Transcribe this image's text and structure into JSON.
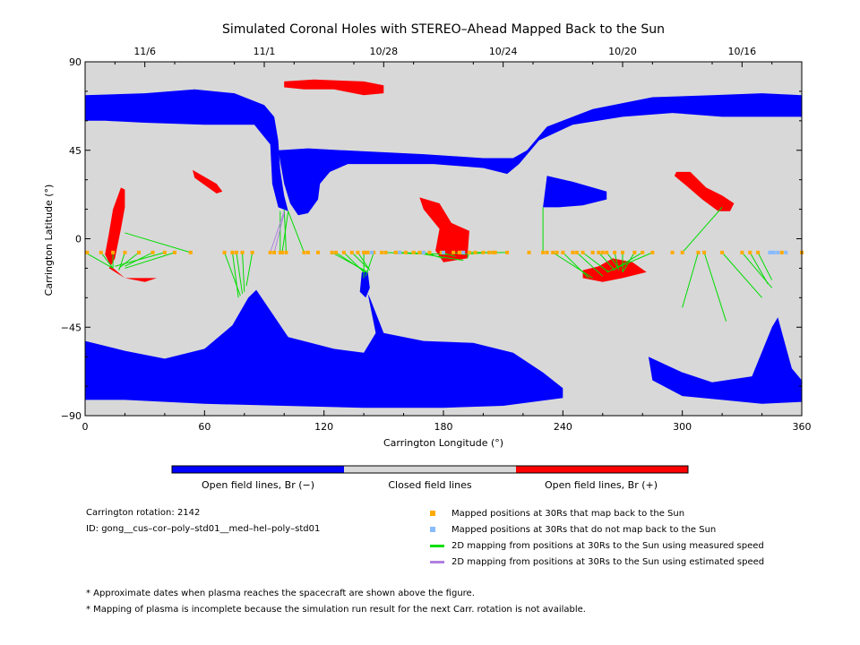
{
  "chart_data": {
    "type": "scatter",
    "title": "Simulated Coronal Holes with STEREO–Ahead Mapped Back to the Sun",
    "xlabel": "Carrington Longitude (°)",
    "ylabel": "Carrington Latitude (°)",
    "xlim": [
      0,
      360
    ],
    "ylim": [
      -90,
      90
    ],
    "x_ticks": [
      0,
      60,
      120,
      180,
      240,
      300,
      360
    ],
    "y_ticks": [
      -90,
      -45,
      0,
      45,
      90
    ],
    "x_tick_labels": [
      "0",
      "60",
      "120",
      "180",
      "240",
      "300",
      "360"
    ],
    "y_tick_labels": [
      "−90",
      "−45",
      "0",
      "45",
      "90"
    ],
    "top_axis_dates": [
      {
        "label": "11/6",
        "lon": 30
      },
      {
        "label": "11/1",
        "lon": 90
      },
      {
        "label": "10/28",
        "lon": 150
      },
      {
        "label": "10/24",
        "lon": 210
      },
      {
        "label": "10/20",
        "lon": 270
      },
      {
        "label": "10/16",
        "lon": 330
      }
    ],
    "background_color": "#d8d8d8",
    "colors": {
      "open_negative": "#0000ff",
      "closed": "#d8d8d8",
      "open_positive": "#ff0000",
      "mapped": "#ffaa00",
      "unmapped": "#88bbff",
      "measured_line": "#00dd00",
      "estimated_line": "#b080e0"
    },
    "colorbar_labels": [
      "Open field lines, Br (−)",
      "Closed field lines",
      "Open field lines, Br (+)"
    ],
    "regions": [
      {
        "polarity": "negative",
        "polygon": [
          [
            0,
            73
          ],
          [
            30,
            74
          ],
          [
            55,
            76
          ],
          [
            75,
            74
          ],
          [
            90,
            68
          ],
          [
            95,
            62
          ],
          [
            97,
            50
          ],
          [
            98,
            35
          ],
          [
            100,
            22
          ],
          [
            102,
            14
          ],
          [
            97,
            16
          ],
          [
            94,
            28
          ],
          [
            93,
            48
          ],
          [
            85,
            58
          ],
          [
            60,
            58
          ],
          [
            30,
            59
          ],
          [
            10,
            60
          ],
          [
            0,
            60
          ]
        ]
      },
      {
        "polarity": "negative",
        "polygon": [
          [
            97,
            45
          ],
          [
            112,
            46
          ],
          [
            130,
            45
          ],
          [
            170,
            43
          ],
          [
            200,
            41
          ],
          [
            215,
            41
          ],
          [
            222,
            45
          ],
          [
            232,
            57
          ],
          [
            255,
            66
          ],
          [
            285,
            72
          ],
          [
            315,
            73
          ],
          [
            340,
            74
          ],
          [
            360,
            73
          ],
          [
            360,
            62
          ],
          [
            340,
            62
          ],
          [
            320,
            62
          ],
          [
            295,
            64
          ],
          [
            270,
            62
          ],
          [
            245,
            58
          ],
          [
            228,
            50
          ],
          [
            218,
            38
          ],
          [
            212,
            33
          ],
          [
            200,
            36
          ],
          [
            175,
            38
          ],
          [
            150,
            38
          ],
          [
            132,
            38
          ],
          [
            123,
            34
          ],
          [
            118,
            28
          ],
          [
            117,
            20
          ],
          [
            112,
            13
          ],
          [
            107,
            12
          ],
          [
            103,
            18
          ],
          [
            100,
            28
          ]
        ]
      },
      {
        "polarity": "negative",
        "polygon": [
          [
            230,
            16
          ],
          [
            232,
            32
          ],
          [
            245,
            29
          ],
          [
            262,
            24
          ],
          [
            262,
            20
          ],
          [
            250,
            17
          ],
          [
            238,
            16
          ]
        ]
      },
      {
        "polarity": "negative",
        "polygon": [
          [
            0,
            -52
          ],
          [
            20,
            -57
          ],
          [
            40,
            -61
          ],
          [
            60,
            -56
          ],
          [
            74,
            -44
          ],
          [
            82,
            -30
          ],
          [
            86,
            -26
          ],
          [
            94,
            -38
          ],
          [
            102,
            -50
          ],
          [
            125,
            -56
          ],
          [
            140,
            -58
          ],
          [
            146,
            -48
          ],
          [
            142,
            -28
          ],
          [
            140,
            -24
          ],
          [
            143,
            -30
          ],
          [
            150,
            -48
          ],
          [
            170,
            -52
          ],
          [
            195,
            -53
          ],
          [
            215,
            -58
          ],
          [
            230,
            -68
          ],
          [
            240,
            -76
          ],
          [
            240,
            -81
          ],
          [
            210,
            -85
          ],
          [
            180,
            -86
          ],
          [
            140,
            -86
          ],
          [
            100,
            -85
          ],
          [
            60,
            -84
          ],
          [
            20,
            -82
          ],
          [
            0,
            -82
          ]
        ]
      },
      {
        "polarity": "negative",
        "polygon": [
          [
            283,
            -60
          ],
          [
            300,
            -68
          ],
          [
            315,
            -73
          ],
          [
            335,
            -70
          ],
          [
            345,
            -45
          ],
          [
            348,
            -40
          ],
          [
            355,
            -66
          ],
          [
            360,
            -72
          ],
          [
            360,
            -83
          ],
          [
            340,
            -84
          ],
          [
            320,
            -82
          ],
          [
            300,
            -80
          ],
          [
            285,
            -72
          ]
        ]
      },
      {
        "polarity": "negative",
        "polygon": [
          [
            139,
            -17
          ],
          [
            142,
            -17
          ],
          [
            143,
            -25
          ],
          [
            141,
            -30
          ],
          [
            138,
            -27
          ]
        ]
      },
      {
        "polarity": "positive",
        "polygon": [
          [
            100,
            80
          ],
          [
            115,
            81
          ],
          [
            140,
            80
          ],
          [
            150,
            78
          ],
          [
            150,
            74
          ],
          [
            140,
            73
          ],
          [
            125,
            76
          ],
          [
            110,
            76
          ],
          [
            100,
            77
          ]
        ]
      },
      {
        "polarity": "positive",
        "polygon": [
          [
            54,
            35
          ],
          [
            66,
            28
          ],
          [
            69,
            24
          ],
          [
            66,
            23
          ],
          [
            55,
            31
          ]
        ]
      },
      {
        "polarity": "positive",
        "polygon": [
          [
            15,
            -10
          ],
          [
            18,
            5
          ],
          [
            20,
            16
          ],
          [
            20,
            25
          ],
          [
            18,
            26
          ],
          [
            14,
            15
          ],
          [
            12,
            3
          ],
          [
            10,
            -8
          ],
          [
            13,
            -14
          ],
          [
            20,
            -20
          ],
          [
            30,
            -20
          ],
          [
            36,
            -20
          ],
          [
            30,
            -22
          ],
          [
            20,
            -20
          ],
          [
            12,
            -15
          ],
          [
            14,
            -12
          ],
          [
            15,
            -10
          ]
        ]
      },
      {
        "polarity": "positive",
        "polygon": [
          [
            168,
            21
          ],
          [
            178,
            18
          ],
          [
            184,
            8
          ],
          [
            193,
            4
          ],
          [
            192,
            -10
          ],
          [
            180,
            -12
          ],
          [
            176,
            -6
          ],
          [
            178,
            5
          ],
          [
            170,
            15
          ]
        ]
      },
      {
        "polarity": "positive",
        "polygon": [
          [
            250,
            -20
          ],
          [
            260,
            -22
          ],
          [
            270,
            -20
          ],
          [
            282,
            -17
          ],
          [
            275,
            -12
          ],
          [
            265,
            -10
          ],
          [
            258,
            -14
          ],
          [
            250,
            -16
          ]
        ]
      },
      {
        "polarity": "positive",
        "polygon": [
          [
            297,
            34
          ],
          [
            304,
            34
          ],
          [
            312,
            26
          ],
          [
            320,
            22
          ],
          [
            326,
            18
          ],
          [
            324,
            14
          ],
          [
            318,
            14
          ],
          [
            310,
            20
          ],
          [
            302,
            27
          ],
          [
            296,
            32
          ]
        ]
      }
    ],
    "mapped_positions_lon": [
      1,
      8,
      14,
      20,
      27,
      34,
      40,
      45,
      53,
      70,
      74,
      76,
      79,
      84,
      93,
      95,
      98,
      99,
      101,
      110,
      112,
      117,
      124,
      126,
      130,
      134,
      137,
      140,
      141,
      142,
      145,
      149,
      151,
      156,
      158,
      161,
      165,
      168,
      170,
      173,
      179,
      185,
      188,
      189,
      193,
      196,
      200,
      203,
      205,
      206,
      212,
      223,
      230,
      232,
      235,
      237,
      240,
      245,
      247,
      250,
      255,
      258,
      260,
      262,
      266,
      270,
      276,
      280,
      285,
      295,
      300,
      308,
      311,
      320,
      330,
      334,
      338,
      350,
      360
    ],
    "unmapped_positions_lon": [
      144,
      158,
      170,
      180,
      190,
      344,
      345,
      346,
      348,
      352
    ],
    "mapped_positions_lat": -7,
    "measured_mapping": [
      [
        [
          0,
          -7
        ],
        [
          14,
          -15
        ]
      ],
      [
        [
          8,
          -7
        ],
        [
          14,
          -15
        ]
      ],
      [
        [
          14,
          -7
        ],
        [
          14,
          -15
        ]
      ],
      [
        [
          20,
          -7
        ],
        [
          17,
          -16
        ]
      ],
      [
        [
          27,
          -7
        ],
        [
          17,
          -15
        ]
      ],
      [
        [
          34,
          -7
        ],
        [
          20,
          -14
        ]
      ],
      [
        [
          40,
          -7
        ],
        [
          15,
          -14
        ]
      ],
      [
        [
          45,
          -7
        ],
        [
          20,
          -15
        ]
      ],
      [
        [
          53,
          -7
        ],
        [
          20,
          3
        ]
      ],
      [
        [
          70,
          -7
        ],
        [
          78,
          -29
        ]
      ],
      [
        [
          74,
          -7
        ],
        [
          77,
          -30
        ]
      ],
      [
        [
          76,
          -7
        ],
        [
          79,
          -28
        ]
      ],
      [
        [
          79,
          -7
        ],
        [
          80,
          -27
        ]
      ],
      [
        [
          84,
          -7
        ],
        [
          81,
          -24
        ]
      ],
      [
        [
          98,
          -7
        ],
        [
          98,
          14
        ]
      ],
      [
        [
          99,
          -7
        ],
        [
          102,
          14
        ]
      ],
      [
        [
          101,
          -7
        ],
        [
          100,
          15
        ]
      ],
      [
        [
          110,
          -7
        ],
        [
          102,
          14
        ]
      ],
      [
        [
          124,
          -7
        ],
        [
          142,
          -17
        ]
      ],
      [
        [
          126,
          -7
        ],
        [
          141,
          -17
        ]
      ],
      [
        [
          130,
          -7
        ],
        [
          140,
          -17
        ]
      ],
      [
        [
          134,
          -7
        ],
        [
          142,
          -15
        ]
      ],
      [
        [
          137,
          -7
        ],
        [
          143,
          -16
        ]
      ],
      [
        [
          140,
          -7
        ],
        [
          140,
          -20
        ]
      ],
      [
        [
          145,
          -7
        ],
        [
          141,
          -19
        ]
      ],
      [
        [
          151,
          -7
        ],
        [
          175,
          -8
        ]
      ],
      [
        [
          158,
          -7
        ],
        [
          182,
          -8
        ]
      ],
      [
        [
          165,
          -7
        ],
        [
          190,
          -11
        ]
      ],
      [
        [
          170,
          -7
        ],
        [
          180,
          -10
        ]
      ],
      [
        [
          179,
          -7
        ],
        [
          186,
          -9
        ]
      ],
      [
        [
          185,
          -7
        ],
        [
          190,
          -8
        ]
      ],
      [
        [
          193,
          -7
        ],
        [
          192,
          -10
        ]
      ],
      [
        [
          203,
          -7
        ],
        [
          190,
          -8
        ]
      ],
      [
        [
          212,
          -7
        ],
        [
          192,
          -7
        ]
      ],
      [
        [
          230,
          -7
        ],
        [
          230,
          16
        ]
      ],
      [
        [
          235,
          -7
        ],
        [
          255,
          -20
        ]
      ],
      [
        [
          240,
          -7
        ],
        [
          253,
          -20
        ]
      ],
      [
        [
          247,
          -7
        ],
        [
          260,
          -19
        ]
      ],
      [
        [
          250,
          -7
        ],
        [
          263,
          -17
        ]
      ],
      [
        [
          258,
          -7
        ],
        [
          266,
          -16
        ]
      ],
      [
        [
          262,
          -7
        ],
        [
          268,
          -15
        ]
      ],
      [
        [
          266,
          -7
        ],
        [
          268,
          -16
        ]
      ],
      [
        [
          270,
          -7
        ],
        [
          270,
          -17
        ]
      ],
      [
        [
          276,
          -7
        ],
        [
          270,
          -17
        ]
      ],
      [
        [
          280,
          -7
        ],
        [
          265,
          -16
        ]
      ],
      [
        [
          285,
          -7
        ],
        [
          262,
          -17
        ]
      ],
      [
        [
          300,
          -7
        ],
        [
          320,
          16
        ]
      ],
      [
        [
          308,
          -7
        ],
        [
          300,
          -35
        ]
      ],
      [
        [
          311,
          -7
        ],
        [
          322,
          -42
        ]
      ],
      [
        [
          320,
          -7
        ],
        [
          340,
          -30
        ]
      ],
      [
        [
          330,
          -7
        ],
        [
          345,
          -25
        ]
      ],
      [
        [
          334,
          -7
        ],
        [
          343,
          -23
        ]
      ],
      [
        [
          338,
          -7
        ],
        [
          345,
          -21
        ]
      ]
    ],
    "estimated_mapping": [
      [
        [
          93,
          -7
        ],
        [
          100,
          14
        ]
      ],
      [
        [
          95,
          -7
        ],
        [
          100,
          13
        ]
      ]
    ],
    "legend": [
      "Mapped positions at 30Rs that map back to the Sun",
      "Mapped positions at 30Rs that do not map back to the Sun",
      "2D mapping from positions at 30Rs to the Sun using measured speed",
      "2D mapping from positions at 30Rs to the Sun using estimated speed"
    ]
  },
  "info": {
    "rotation": "Carrington rotation: 2142",
    "id": "ID: gong__cus–cor–poly–std01__med–hel–poly–std01"
  },
  "notes": [
    "* Approximate dates when plasma reaches the spacecraft are shown above the figure.",
    "* Mapping of plasma is incomplete because the simulation run result for the next Carr. rotation is not available."
  ]
}
